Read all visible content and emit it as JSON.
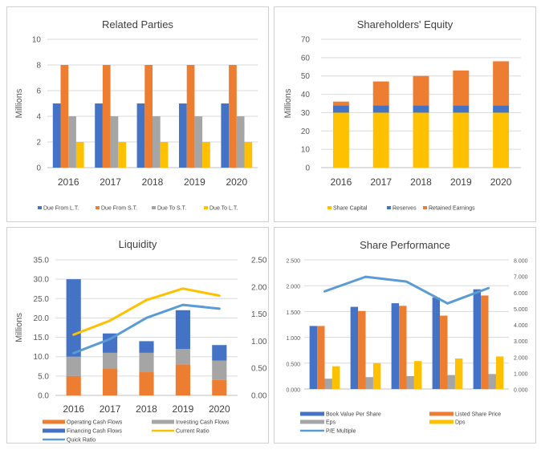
{
  "chart_data": [
    {
      "id": "related",
      "type": "bar",
      "title": "Related Parties",
      "ylabel": "Millions",
      "categories": [
        "2016",
        "2017",
        "2018",
        "2019",
        "2020"
      ],
      "ylim": [
        0,
        10
      ],
      "yticks": [
        "0",
        "2",
        "4",
        "6",
        "8",
        "10"
      ],
      "gridlines": true,
      "legend_position": "bottom",
      "series": [
        {
          "name": "Due From L.T.",
          "color": "#4472c4",
          "values": [
            5,
            5,
            5,
            5,
            5
          ]
        },
        {
          "name": "Due From S.T.",
          "color": "#ed7d31",
          "values": [
            8,
            8,
            8,
            8,
            8
          ]
        },
        {
          "name": "Due To S.T.",
          "color": "#a5a5a5",
          "values": [
            4,
            4,
            4,
            4,
            4
          ]
        },
        {
          "name": "Due To L.T.",
          "color": "#ffc000",
          "values": [
            2,
            2,
            2,
            2,
            2
          ]
        }
      ]
    },
    {
      "id": "equity",
      "type": "bar",
      "stacked": true,
      "title": "Shareholders' Equity",
      "ylabel": "Millions",
      "categories": [
        "2016",
        "2017",
        "2018",
        "2019",
        "2020"
      ],
      "ylim": [
        0,
        70
      ],
      "yticks": [
        "0",
        "10",
        "20",
        "30",
        "40",
        "50",
        "60",
        "70"
      ],
      "gridlines": true,
      "legend_position": "bottom",
      "series": [
        {
          "name": "Share Capital",
          "color": "#ffc000",
          "values": [
            30,
            30,
            30,
            30,
            30
          ]
        },
        {
          "name": "Reserves",
          "color": "#4472c4",
          "values": [
            4,
            4,
            4,
            4,
            4
          ]
        },
        {
          "name": "Retained Earnings",
          "color": "#ed7d31",
          "values": [
            2,
            13,
            16,
            19,
            24
          ]
        }
      ]
    },
    {
      "id": "liquidity",
      "type": "bar",
      "stacked": true,
      "title": "Liquidity",
      "ylabel": "Millions",
      "categories": [
        "2016",
        "2017",
        "2018",
        "2019",
        "2020"
      ],
      "ylim": [
        0,
        35
      ],
      "yticks": [
        "0.0",
        "5.0",
        "10.0",
        "15.0",
        "20.0",
        "25.0",
        "30.0",
        "35.0"
      ],
      "y2lim": [
        0,
        2.5
      ],
      "y2ticks": [
        "0.00",
        "0.50",
        "1.00",
        "1.50",
        "2.00",
        "2.50"
      ],
      "gridlines": true,
      "legend_position": "bottom",
      "series": [
        {
          "name": "Operating Cash Flows",
          "color": "#ed7d31",
          "kind": "bar",
          "values": [
            5,
            7,
            6,
            8,
            4
          ]
        },
        {
          "name": "Investing Cash Flows",
          "color": "#a5a5a5",
          "kind": "bar",
          "values": [
            5,
            4,
            5,
            4,
            5
          ]
        },
        {
          "name": "Financing Cash Flows",
          "color": "#4472c4",
          "kind": "bar",
          "values": [
            20,
            5,
            3,
            10,
            4
          ]
        },
        {
          "name": "Current Ratio",
          "color": "#ffc000",
          "kind": "line",
          "axis": "secondary",
          "values": [
            1.12,
            1.38,
            1.76,
            1.97,
            1.84
          ]
        },
        {
          "name": "Quick Ratio",
          "color": "#5b9bd5",
          "kind": "line",
          "axis": "secondary",
          "values": [
            0.78,
            1.04,
            1.43,
            1.67,
            1.6
          ]
        }
      ]
    },
    {
      "id": "performance",
      "type": "bar",
      "title": "Share Performance",
      "categories": [
        "",
        "",
        "",
        "",
        ""
      ],
      "ylim": [
        0,
        2.5
      ],
      "yticks": [
        "0.000",
        "0.500",
        "1.000",
        "1.500",
        "2.000",
        "2.500"
      ],
      "y2lim": [
        0,
        8
      ],
      "y2ticks": [
        "0.000",
        "1.000",
        "2.000",
        "3.000",
        "4.000",
        "5.000",
        "6.000",
        "7.000",
        "8.000"
      ],
      "gridlines": true,
      "legend_position": "bottom",
      "series": [
        {
          "name": "Book Value Per Share",
          "color": "#4472c4",
          "kind": "bar",
          "values": [
            1.22,
            1.59,
            1.66,
            1.77,
            1.93
          ]
        },
        {
          "name": "Listed Share Price",
          "color": "#ed7d31",
          "kind": "bar",
          "values": [
            1.22,
            1.51,
            1.61,
            1.42,
            1.81
          ]
        },
        {
          "name": "Eps",
          "color": "#a5a5a5",
          "kind": "bar",
          "values": [
            0.2,
            0.23,
            0.25,
            0.27,
            0.29
          ]
        },
        {
          "name": "Dps",
          "color": "#ffc000",
          "kind": "bar",
          "values": [
            0.44,
            0.5,
            0.54,
            0.59,
            0.63
          ]
        },
        {
          "name": "P/E Multiple",
          "color": "#5b9bd5",
          "kind": "line",
          "axis": "secondary",
          "values": [
            6.05,
            6.95,
            6.65,
            5.3,
            6.25
          ]
        }
      ]
    }
  ]
}
